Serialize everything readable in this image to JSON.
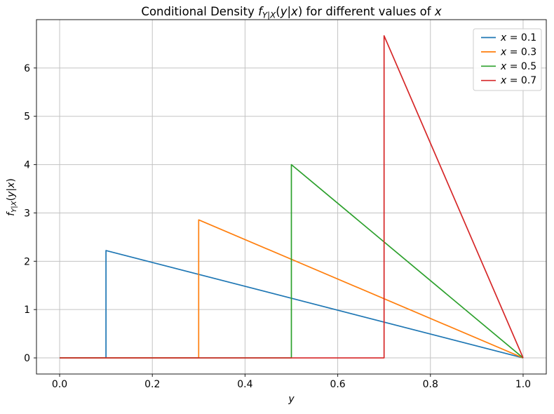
{
  "figure": {
    "background": "#ffffff"
  },
  "chart_data": {
    "type": "line",
    "title": "Conditional Density f_{Y|X}(y|x) for different values of x",
    "title_segments": [
      {
        "t": "Conditional Density ",
        "style": "plain"
      },
      {
        "t": "f",
        "style": "italic"
      },
      {
        "t": "Y|X",
        "style": "italic sub"
      },
      {
        "t": "(",
        "style": "plain"
      },
      {
        "t": "y",
        "style": "italic"
      },
      {
        "t": "|",
        "style": "plain"
      },
      {
        "t": "x",
        "style": "italic"
      },
      {
        "t": ")",
        "style": "plain"
      },
      {
        "t": " for different values of ",
        "style": "plain"
      },
      {
        "t": "x",
        "style": "italic"
      }
    ],
    "xlabel": "y",
    "ylabel": "f_{Y|X}(y|x)",
    "ylabel_segments": [
      {
        "t": "f",
        "style": "italic"
      },
      {
        "t": "Y|X",
        "style": "italic sub"
      },
      {
        "t": "(",
        "style": "plain"
      },
      {
        "t": "y",
        "style": "italic"
      },
      {
        "t": "|",
        "style": "plain"
      },
      {
        "t": "x",
        "style": "italic"
      },
      {
        "t": ")",
        "style": "plain"
      }
    ],
    "xlim": [
      -0.05,
      1.05
    ],
    "ylim": [
      -0.3333,
      7.0
    ],
    "xticks": {
      "values": [
        0.0,
        0.2,
        0.4,
        0.6,
        0.8,
        1.0
      ],
      "labels": [
        "0.0",
        "0.2",
        "0.4",
        "0.6",
        "0.8",
        "1.0"
      ]
    },
    "yticks": {
      "values": [
        0,
        1,
        2,
        3,
        4,
        5,
        6
      ],
      "labels": [
        "0",
        "1",
        "2",
        "3",
        "4",
        "5",
        "6"
      ]
    },
    "grid": true,
    "colors": {
      "grid": "#c3c3c3",
      "spine": "#1a1a1a",
      "tick": "#1a1a1a",
      "legend_border": "#cccccc",
      "legend_bg": "#ffffff"
    },
    "legend": {
      "position": "upper right",
      "entries": [
        {
          "label": "x = 0.1",
          "segments": [
            {
              "t": "x",
              "style": "italic"
            },
            {
              "t": " = 0.1",
              "style": "plain"
            }
          ],
          "color": "#1f77b4"
        },
        {
          "label": "x = 0.3",
          "segments": [
            {
              "t": "x",
              "style": "italic"
            },
            {
              "t": " = 0.3",
              "style": "plain"
            }
          ],
          "color": "#ff7f0e"
        },
        {
          "label": "x = 0.5",
          "segments": [
            {
              "t": "x",
              "style": "italic"
            },
            {
              "t": " = 0.5",
              "style": "plain"
            }
          ],
          "color": "#2ca02c"
        },
        {
          "label": "x = 0.7",
          "segments": [
            {
              "t": "x",
              "style": "italic"
            },
            {
              "t": " = 0.7",
              "style": "plain"
            }
          ],
          "color": "#d62728"
        }
      ]
    },
    "series": [
      {
        "name": "x = 0.1",
        "color": "#1f77b4",
        "points": [
          [
            0.0,
            0.0
          ],
          [
            0.1,
            0.0
          ],
          [
            0.1,
            2.2222
          ],
          [
            1.0,
            0.0
          ]
        ]
      },
      {
        "name": "x = 0.3",
        "color": "#ff7f0e",
        "points": [
          [
            0.0,
            0.0
          ],
          [
            0.3,
            0.0
          ],
          [
            0.3,
            2.8571
          ],
          [
            1.0,
            0.0
          ]
        ]
      },
      {
        "name": "x = 0.5",
        "color": "#2ca02c",
        "points": [
          [
            0.0,
            0.0
          ],
          [
            0.5,
            0.0
          ],
          [
            0.5,
            4.0
          ],
          [
            1.0,
            0.0
          ]
        ]
      },
      {
        "name": "x = 0.7",
        "color": "#d62728",
        "points": [
          [
            0.0,
            0.0
          ],
          [
            0.7,
            0.0
          ],
          [
            0.7,
            6.6667
          ],
          [
            1.0,
            0.0
          ]
        ]
      }
    ]
  }
}
